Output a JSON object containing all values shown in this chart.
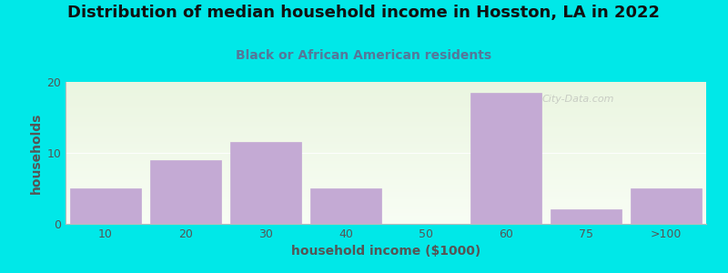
{
  "title": "Distribution of median household income in Hosston, LA in 2022",
  "subtitle": "Black or African American residents",
  "xlabel": "household income ($1000)",
  "ylabel": "households",
  "categories": [
    "10",
    "20",
    "30",
    "40",
    "50",
    "60",
    "75",
    ">100"
  ],
  "values": [
    5,
    9,
    11.5,
    5,
    0,
    18.5,
    2,
    5
  ],
  "bar_color": "#c4aad4",
  "bar_edgecolor": "#c4aad4",
  "bg_color_top": "#eaf5e0",
  "bg_color_bottom": "#f8fdf4",
  "outer_bg": "#00e8e8",
  "ylim": [
    0,
    20
  ],
  "yticks": [
    0,
    10,
    20
  ],
  "title_fontsize": 13,
  "subtitle_fontsize": 10,
  "axis_label_fontsize": 10,
  "tick_fontsize": 9,
  "title_color": "#111111",
  "subtitle_color": "#557799",
  "tick_color": "#555555",
  "watermark": "City-Data.com"
}
